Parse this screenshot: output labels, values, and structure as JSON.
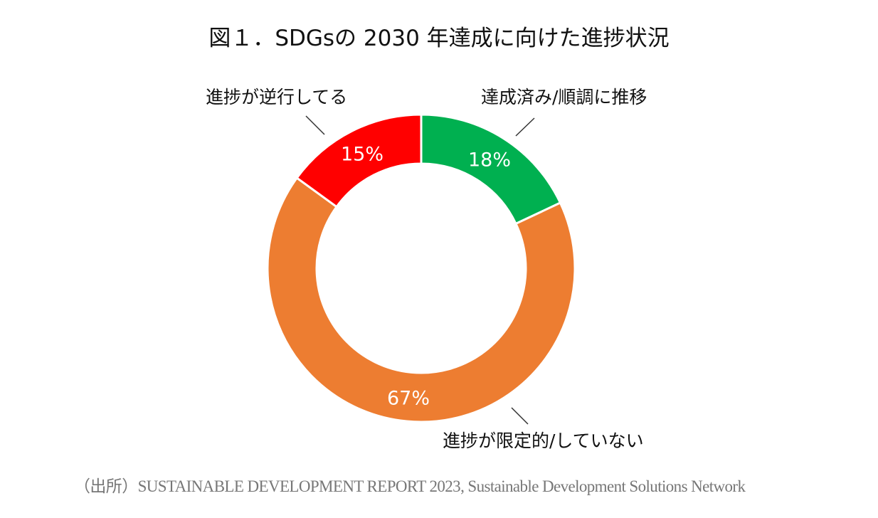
{
  "title": "図１．SDGsの 2030 年達成に向けた進捗状況",
  "source": "（出所）SUSTAINABLE DEVELOPMENT REPORT 2023, Sustainable Development Solutions Network",
  "chart_data": {
    "type": "pie",
    "variant": "donut",
    "title": "図１．SDGsの 2030 年達成に向けた進捗状況",
    "start": "top",
    "direction": "clockwise",
    "legend": "none",
    "slices": [
      {
        "label": "達成済み/順調に推移",
        "value": 18,
        "display": "18%",
        "color": "#00b050"
      },
      {
        "label": "進捗が限定的/していない",
        "value": 67,
        "display": "67%",
        "color": "#ed7d31"
      },
      {
        "label": "進捗が逆行してる",
        "value": 15,
        "display": "15%",
        "color": "#ff0000"
      }
    ]
  }
}
